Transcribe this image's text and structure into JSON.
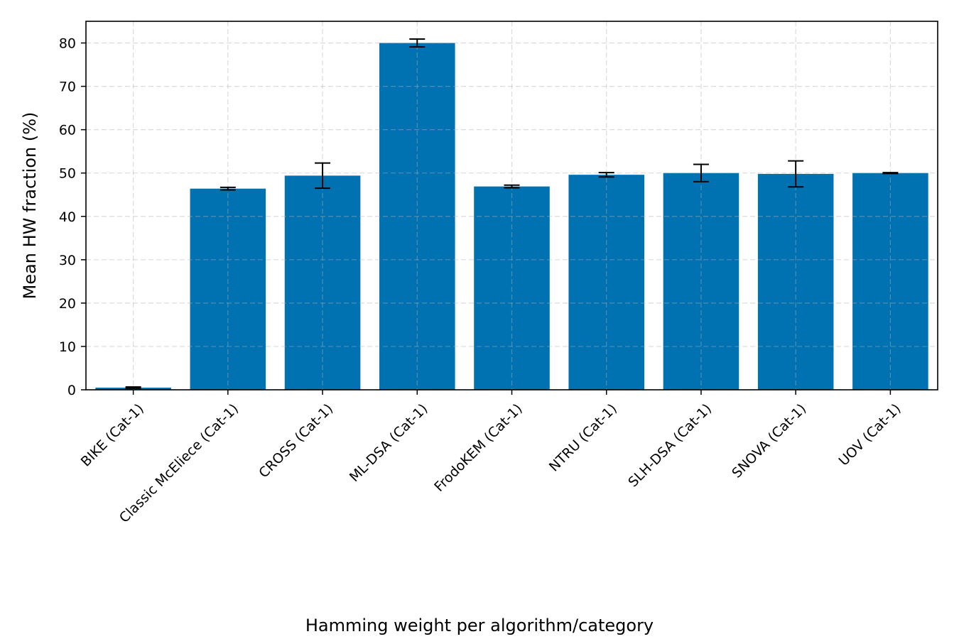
{
  "chart_data": {
    "type": "bar",
    "title": "",
    "xlabel": "Hamming weight per algorithm/category",
    "ylabel": "Mean HW fraction (%)",
    "ylim": [
      0,
      85
    ],
    "yticks": [
      0,
      10,
      20,
      30,
      40,
      50,
      60,
      70,
      80
    ],
    "grid": true,
    "legend": "none",
    "bar_color": "#0072b2",
    "categories": [
      "BIKE (Cat-1)",
      "Classic McEliece (Cat-1)",
      "CROSS (Cat-1)",
      "ML-DSA (Cat-1)",
      "FrodoKEM (Cat-1)",
      "NTRU (Cat-1)",
      "SLH-DSA (Cat-1)",
      "SNOVA (Cat-1)",
      "UOV (Cat-1)"
    ],
    "values": [
      0.5,
      46.4,
      49.4,
      80.0,
      46.9,
      49.6,
      50.0,
      49.8,
      50.0
    ],
    "errors": [
      0.15,
      0.3,
      2.9,
      0.9,
      0.3,
      0.5,
      2.0,
      3.0,
      0.1
    ]
  }
}
